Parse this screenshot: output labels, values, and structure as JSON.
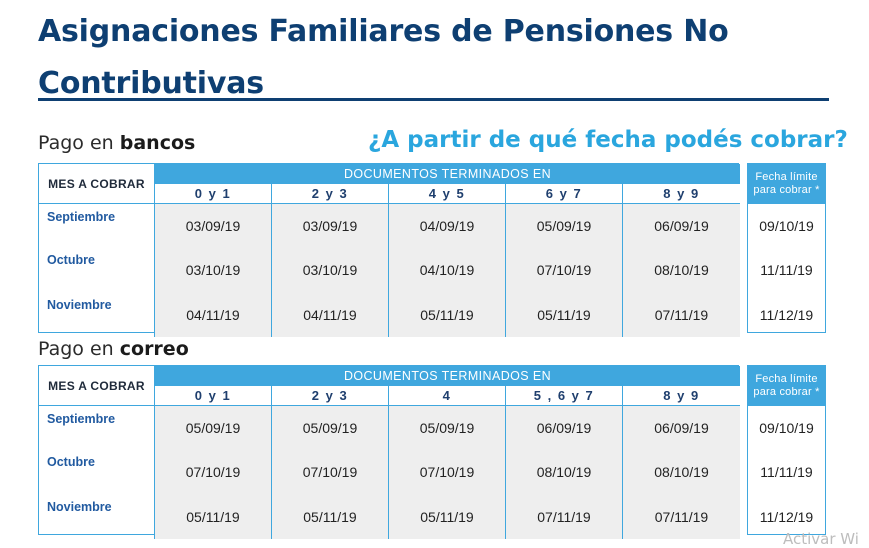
{
  "title": "Asignaciones Familiares de Pensiones No Contributivas",
  "question": "¿A partir de qué fecha podés cobrar?",
  "banks": {
    "label_prefix": "Pago en ",
    "label_bold": "bancos",
    "mes_header": "MES A COBRAR",
    "docs_header": "DOCUMENTOS TERMINADOS EN",
    "columns": [
      "0 y 1",
      "2 y 3",
      "4 y 5",
      "6 y 7",
      "8 y 9"
    ],
    "rows": [
      {
        "month": "Septiembre",
        "values": [
          "03/09/19",
          "03/09/19",
          "04/09/19",
          "05/09/19",
          "06/09/19"
        ]
      },
      {
        "month": "Octubre",
        "values": [
          "03/10/19",
          "03/10/19",
          "04/10/19",
          "07/10/19",
          "08/10/19"
        ]
      },
      {
        "month": "Noviembre",
        "values": [
          "04/11/19",
          "04/11/19",
          "05/11/19",
          "05/11/19",
          "07/11/19"
        ]
      }
    ],
    "limit_header": "Fecha límite para cobrar *",
    "limits": [
      "09/10/19",
      "11/11/19",
      "11/12/19"
    ]
  },
  "mail": {
    "label_prefix": "Pago en ",
    "label_bold": "correo",
    "mes_header": "MES A COBRAR",
    "docs_header": "DOCUMENTOS TERMINADOS EN",
    "columns": [
      "0 y 1",
      "2 y 3",
      "4",
      "5 , 6 y 7",
      "8 y 9"
    ],
    "rows": [
      {
        "month": "Septiembre",
        "values": [
          "05/09/19",
          "05/09/19",
          "05/09/19",
          "06/09/19",
          "06/09/19"
        ]
      },
      {
        "month": "Octubre",
        "values": [
          "07/10/19",
          "07/10/19",
          "07/10/19",
          "08/10/19",
          "08/10/19"
        ]
      },
      {
        "month": "Noviembre",
        "values": [
          "05/11/19",
          "05/11/19",
          "05/11/19",
          "07/11/19",
          "07/11/19"
        ]
      }
    ],
    "limit_header": "Fecha límite para cobrar *",
    "limits": [
      "09/10/19",
      "11/11/19",
      "11/12/19"
    ]
  },
  "watermark": "Activar Wi",
  "colors": {
    "title": "#0e3f72",
    "accent": "#3fa7de",
    "question": "#2aa6de",
    "month": "#215aa0"
  }
}
